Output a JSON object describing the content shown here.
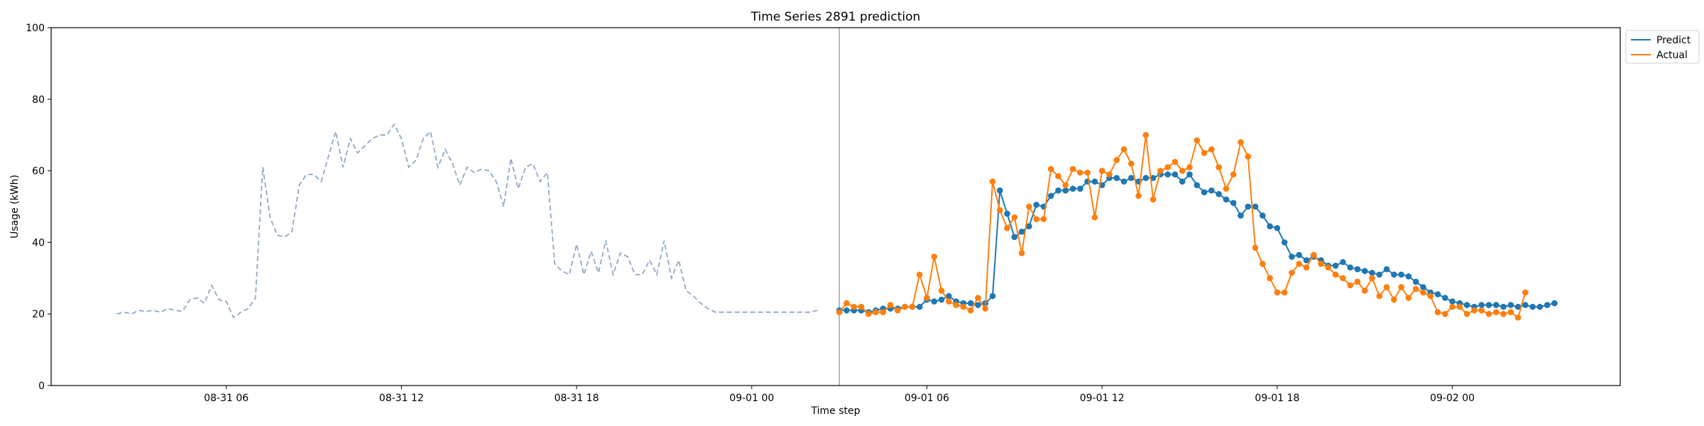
{
  "chart_data": {
    "type": "line",
    "title": "Time Series 2891 prediction",
    "xlabel": "Time step",
    "ylabel": "Usage (kWh)",
    "ylim": [
      0,
      100
    ],
    "yticks": [
      0,
      20,
      40,
      60,
      80,
      100
    ],
    "xlim": [
      "2023-08-31 00:00",
      "2023-09-02 05:45"
    ],
    "xticks": [
      {
        "label": "08-31 06",
        "t": "2023-08-31 06:00"
      },
      {
        "label": "08-31 12",
        "t": "2023-08-31 12:00"
      },
      {
        "label": "08-31 18",
        "t": "2023-08-31 18:00"
      },
      {
        "label": "09-01 00",
        "t": "2023-09-01 00:00"
      },
      {
        "label": "09-01 06",
        "t": "2023-09-01 06:00"
      },
      {
        "label": "09-01 12",
        "t": "2023-09-01 12:00"
      },
      {
        "label": "09-01 18",
        "t": "2023-09-01 18:00"
      },
      {
        "label": "09-02 00",
        "t": "2023-09-02 00:00"
      }
    ],
    "forecast_start": "2023-09-01 03:00",
    "interval_minutes": 15,
    "legend": {
      "position": "outside-top-right",
      "entries": [
        "Predict",
        "Actual"
      ]
    },
    "colors": {
      "predict": "#1f77b4",
      "actual": "#ff7f0e",
      "history": "#8fa8c8",
      "vline": "#8fa8d0"
    },
    "grid": false,
    "history": {
      "style": "dashed",
      "start": "2023-08-31 02:15",
      "values": [
        20,
        20.5,
        20,
        21,
        20.7,
        21,
        20.5,
        21.5,
        21,
        20.7,
        24,
        24.5,
        23,
        28,
        24,
        23.5,
        19,
        20.5,
        21.5,
        24.5,
        61,
        47,
        42,
        41.5,
        43,
        56,
        59,
        59,
        57,
        64,
        71,
        61,
        69,
        65,
        67,
        69,
        70,
        70,
        73,
        69,
        61,
        63,
        69,
        71,
        61,
        66,
        62,
        56,
        61,
        59.5,
        60.5,
        60,
        57,
        50,
        63.5,
        55,
        61,
        62,
        57,
        59.5,
        34,
        32,
        31,
        39.5,
        31,
        37.5,
        31.5,
        40.5,
        31,
        37,
        36,
        31,
        31,
        35,
        31,
        40.5,
        30,
        35,
        26.5,
        25,
        23,
        21.5,
        20.5,
        20.5,
        20.5,
        20.5,
        20.5,
        20.5,
        20.5,
        20.5,
        20.5,
        20.5,
        20.5,
        20.5,
        20.5,
        20.5,
        21
      ]
    },
    "series": [
      {
        "name": "Predict",
        "start": "2023-09-01 03:00",
        "values": [
          21,
          21,
          21,
          21,
          20.5,
          21,
          21.5,
          21.5,
          21.5,
          22,
          22,
          22,
          24,
          23.5,
          24,
          25,
          23.5,
          23,
          23,
          22.5,
          23,
          25,
          54.5,
          48,
          41.5,
          43,
          44.5,
          50.5,
          50,
          53,
          54.5,
          54.5,
          55,
          55,
          57,
          57,
          56,
          58,
          58,
          57,
          58,
          57,
          58,
          58,
          59,
          59,
          59,
          57,
          59,
          56,
          54,
          54.5,
          53.5,
          52,
          51,
          47.5,
          50,
          50,
          47.5,
          44.5,
          44,
          40,
          36,
          36.5,
          35,
          36,
          35,
          33.5,
          33.5,
          34.5,
          33,
          32.5,
          32,
          31.5,
          31,
          32.5,
          31,
          31,
          30.5,
          29,
          27.5,
          26,
          25.5,
          24.5,
          23.5,
          23,
          22.5,
          22,
          22.5,
          22.5,
          22.5,
          22,
          22.5,
          22,
          22.5,
          22,
          22,
          22.5,
          23
        ]
      },
      {
        "name": "Actual",
        "start": "2023-09-01 03:00",
        "values": [
          20.5,
          23,
          22,
          22,
          20,
          20.5,
          20.5,
          22.5,
          21,
          22,
          22,
          31,
          24.5,
          36,
          26.5,
          23.5,
          22.5,
          22,
          21,
          24.5,
          21.5,
          57,
          49,
          44,
          47,
          37,
          50,
          46.5,
          46.5,
          60.5,
          58.5,
          56,
          60.5,
          59.5,
          59.5,
          47,
          60,
          59,
          63,
          66,
          62,
          53,
          70,
          52,
          60,
          61,
          62.5,
          60,
          61,
          68.5,
          65,
          66,
          61,
          55,
          59,
          68,
          64,
          38.5,
          34,
          30,
          26,
          26,
          31.5,
          34,
          33,
          36.5,
          34,
          33,
          31,
          30,
          28,
          29,
          26.5,
          30,
          25,
          27.5,
          24,
          27.5,
          24.5,
          27,
          26,
          25,
          20.5,
          20,
          22,
          22,
          20,
          21,
          21,
          20,
          20.5,
          20,
          20.5,
          19,
          26
        ]
      }
    ]
  }
}
